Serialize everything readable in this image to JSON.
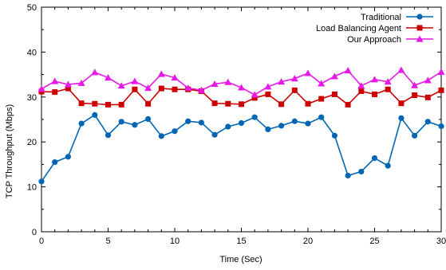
{
  "chart_data": {
    "type": "line",
    "title": "",
    "xlabel": "Time (Sec)",
    "ylabel": "TCP Throughput (Mbps)",
    "xlim": [
      0,
      30
    ],
    "ylim": [
      0,
      50
    ],
    "xticks": [
      0,
      5,
      10,
      15,
      20,
      25,
      30
    ],
    "yticks": [
      0,
      10,
      20,
      30,
      40,
      50
    ],
    "grid": false,
    "legend_position": "top-right",
    "x": [
      0,
      1,
      2,
      3,
      4,
      5,
      6,
      7,
      8,
      9,
      10,
      11,
      12,
      13,
      14,
      15,
      16,
      17,
      18,
      19,
      20,
      21,
      22,
      23,
      24,
      25,
      26,
      27,
      28,
      29,
      30
    ],
    "series": [
      {
        "name": "Traditional",
        "color": "#0066b3",
        "marker": "circle",
        "values": [
          11.2,
          15.5,
          16.7,
          24.1,
          26.0,
          21.5,
          24.5,
          23.8,
          25.1,
          21.3,
          22.4,
          24.6,
          24.3,
          21.6,
          23.4,
          24.2,
          25.5,
          22.8,
          23.6,
          24.6,
          24.1,
          25.5,
          21.4,
          12.5,
          13.4,
          16.4,
          14.7,
          25.3,
          21.4,
          24.5,
          23.5
        ]
      },
      {
        "name": "Load Balancing Agent",
        "color": "#cc0000",
        "marker": "square",
        "values": [
          31.2,
          31.1,
          31.9,
          28.6,
          28.5,
          28.3,
          28.3,
          31.7,
          28.5,
          31.9,
          31.7,
          31.7,
          31.3,
          28.6,
          28.5,
          28.4,
          29.8,
          30.6,
          28.4,
          31.5,
          28.5,
          29.6,
          30.6,
          28.3,
          31.3,
          30.6,
          31.7,
          28.6,
          30.4,
          29.9,
          31.5
        ]
      },
      {
        "name": "Our Approach",
        "color": "#e619e6",
        "marker": "triangle",
        "values": [
          31.8,
          33.5,
          32.8,
          33.1,
          35.5,
          34.3,
          32.5,
          33.5,
          32.0,
          35.1,
          34.3,
          32.0,
          31.5,
          32.9,
          33.3,
          32.1,
          30.5,
          32.3,
          33.4,
          34.1,
          35.3,
          33.0,
          34.6,
          35.9,
          32.5,
          33.9,
          33.4,
          36.0,
          32.6,
          33.7,
          35.6
        ]
      }
    ]
  }
}
